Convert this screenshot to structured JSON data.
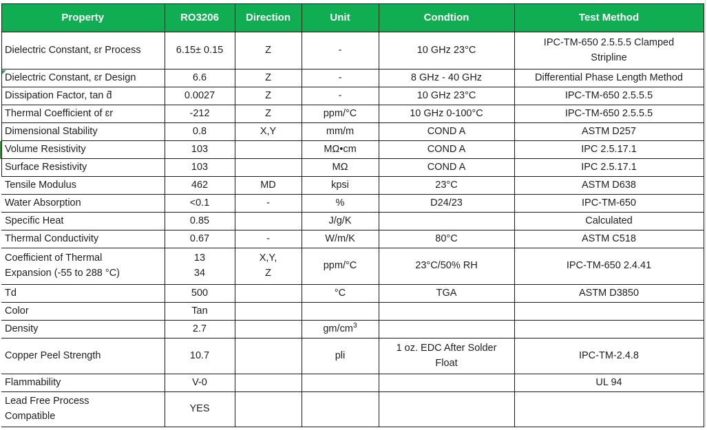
{
  "colors": {
    "header_bg": "#11ad52",
    "header_text": "#ffffff",
    "body_text": "#1d1d1d",
    "grid": "#1a1a1a",
    "marker_green": "#3d8b3d",
    "indicator_green": "#21a366",
    "faint_line": "#d9d9d9"
  },
  "table": {
    "headers": [
      "Property",
      "RO3206",
      "Direction",
      "Unit",
      "Condtion",
      "Test Method"
    ],
    "rows": [
      {
        "property": "Dielectric Constant, ɛr Process",
        "value": "6.15± 0.15",
        "direction": "Z",
        "unit": "-",
        "condition": "10 GHz 23°C",
        "method": "IPC-TM-650 2.5.5.5 Clamped\nStripline"
      },
      {
        "property": "Dielectric Constant, ɛr Design",
        "value": "6.6",
        "direction": "Z",
        "unit": "-",
        "condition": "8 GHz - 40 GHz",
        "method": "Differential Phase Length Method"
      },
      {
        "property": "Dissipation Factor, tan ƌ",
        "value": "0.0027",
        "direction": "Z",
        "unit": "-",
        "condition": "10 GHz 23°C",
        "method": "IPC-TM-650 2.5.5.5"
      },
      {
        "property": "Thermal Coefficient of ɛr",
        "value": "-212",
        "direction": "Z",
        "unit": "ppm/°C",
        "condition": "10 GHz 0-100°C",
        "method": "IPC-TM-650 2.5.5.5"
      },
      {
        "property": "Dimensional Stability",
        "value": "0.8",
        "direction": "X,Y",
        "unit": "mm/m",
        "condition": "COND A",
        "method": "ASTM D257"
      },
      {
        "property": "Volume Resistivity",
        "value": "103",
        "direction": "",
        "unit": "MΩ•cm",
        "condition": "COND A",
        "method": "IPC 2.5.17.1"
      },
      {
        "property": "Surface Resistivity",
        "value": "103",
        "direction": "",
        "unit": "MΩ",
        "condition": "COND A",
        "method": "IPC 2.5.17.1"
      },
      {
        "property": "Tensile Modulus",
        "value": "462",
        "direction": "MD",
        "unit": "kpsi",
        "condition": "23°C",
        "method": "ASTM D638"
      },
      {
        "property": "Water Absorption",
        "value": "<0.1",
        "direction": "-",
        "unit": "%",
        "condition": "D24/23",
        "method": "IPC-TM-650"
      },
      {
        "property": "Specific Heat",
        "value": "0.85",
        "direction": "",
        "unit": "J/g/K",
        "condition": "",
        "method": "Calculated"
      },
      {
        "property": "Thermal Conductivity",
        "value": "0.67",
        "direction": "-",
        "unit": "W/m/K",
        "condition": "80°C",
        "method": "ASTM C518"
      },
      {
        "property": "Coefficient of Thermal\nExpansion (-55 to 288 °C)",
        "value": "13\n34",
        "direction": "X,Y,\nZ",
        "unit": "ppm/°C",
        "condition": "23°C/50% RH",
        "method": "IPC-TM-650 2.4.41"
      },
      {
        "property": "Td",
        "value": "500",
        "direction": "",
        "unit": "°C",
        "condition": "TGA",
        "method": "ASTM D3850"
      },
      {
        "property": "Color",
        "value": "Tan",
        "direction": "",
        "unit": "",
        "condition": "",
        "method": ""
      },
      {
        "property": "Density",
        "value": "2.7",
        "direction": "",
        "unit": "gm/cm³",
        "condition": "",
        "method": ""
      },
      {
        "property": "Copper Peel Strength",
        "value": "10.7",
        "direction": "",
        "unit": "pli",
        "condition": "1 oz. EDC After Solder\nFloat",
        "method": "IPC-TM-2.4.8"
      },
      {
        "property": "Flammability",
        "value": "V-0",
        "direction": "",
        "unit": "",
        "condition": "",
        "method": "UL 94"
      },
      {
        "property": "Lead Free Process\nCompatible",
        "value": "YES",
        "direction": "",
        "unit": "",
        "condition": "",
        "method": ""
      }
    ],
    "markers": {
      "error_indicator_row_index": 1,
      "selection_bar_row_index": 5
    }
  }
}
